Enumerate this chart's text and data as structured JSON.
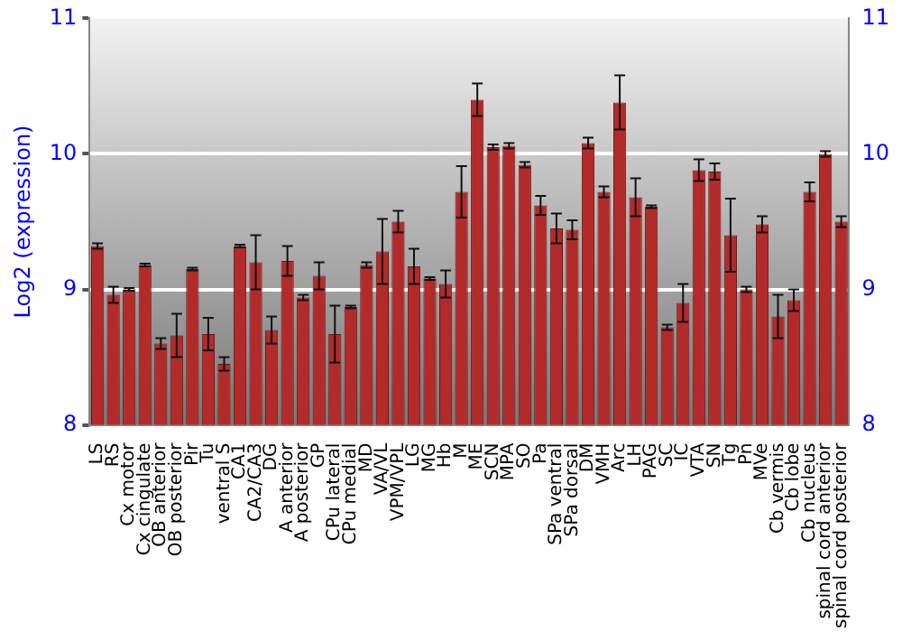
{
  "chart_data": {
    "type": "bar",
    "ylabel": "Log2 (expression)",
    "categories": [
      "LS",
      "RS",
      "Cx motor",
      "Cx cingulate",
      "OB anterior",
      "OB posterior",
      "Pir",
      "Tu",
      "ventral S",
      "CA1",
      "CA2/CA3",
      "DG",
      "A anterior",
      "A posterior",
      "GP",
      "CPu lateral",
      "CPu medial",
      "MD",
      "VA/VL",
      "VPM/VPL",
      "LG",
      "MG",
      "Hb",
      "M",
      "ME",
      "SCN",
      "MPA",
      "SO",
      "Pa",
      "SPa ventral",
      "SPa dorsal",
      "DM",
      "VMH",
      "Arc",
      "LH",
      "PAG",
      "SC",
      "IC",
      "VTA",
      "SN",
      "Tg",
      "Pn",
      "MVe",
      "Cb vermis",
      "Cb lobe",
      "Cb nucleus",
      "spinal cord anterior",
      "spinal cord posterior"
    ],
    "values": [
      9.32,
      8.96,
      9.0,
      9.18,
      8.6,
      8.66,
      9.15,
      8.67,
      8.45,
      9.32,
      9.2,
      8.7,
      9.21,
      8.94,
      9.1,
      8.67,
      8.87,
      9.18,
      9.28,
      9.5,
      9.17,
      9.08,
      9.04,
      9.72,
      10.4,
      10.05,
      10.06,
      9.92,
      9.62,
      9.45,
      9.44,
      10.08,
      9.72,
      10.38,
      9.68,
      9.61,
      8.72,
      8.9,
      9.88,
      9.87,
      9.4,
      9.0,
      9.48,
      8.8,
      8.92,
      9.72,
      10.0,
      9.5
    ],
    "errors": [
      0.02,
      0.06,
      0.01,
      0.01,
      0.04,
      0.16,
      0.01,
      0.12,
      0.05,
      0.01,
      0.2,
      0.1,
      0.11,
      0.02,
      0.1,
      0.21,
      0.01,
      0.02,
      0.24,
      0.08,
      0.13,
      0.01,
      0.1,
      0.19,
      0.12,
      0.02,
      0.02,
      0.02,
      0.07,
      0.11,
      0.07,
      0.04,
      0.04,
      0.2,
      0.14,
      0.01,
      0.02,
      0.14,
      0.08,
      0.06,
      0.27,
      0.02,
      0.06,
      0.16,
      0.08,
      0.07,
      0.02,
      0.04
    ],
    "color": "#b22a2a",
    "ylim": [
      8,
      11
    ],
    "yticks": [
      8,
      9,
      10,
      11
    ],
    "y2lim": [
      8,
      11
    ],
    "y2ticks": [
      8,
      9,
      10,
      11
    ],
    "grid": "y",
    "legend": false
  }
}
